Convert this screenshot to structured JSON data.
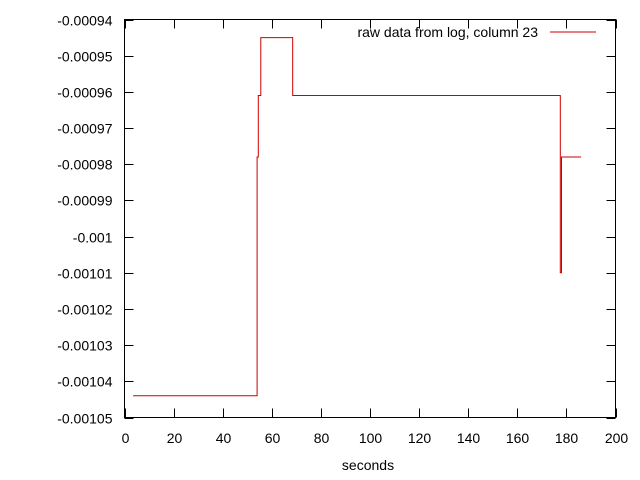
{
  "chart_data": {
    "type": "line",
    "title": "",
    "xlabel": "seconds",
    "ylabel": "",
    "xlim": [
      0,
      200
    ],
    "ylim": [
      -0.00105,
      -0.00094
    ],
    "x_ticks": [
      "0",
      "20",
      "40",
      "60",
      "80",
      "100",
      "120",
      "140",
      "160",
      "180",
      "200"
    ],
    "y_ticks": [
      "-0.00094",
      "-0.00095",
      "-0.00096",
      "-0.00097",
      "-0.00098",
      "-0.00099",
      "-0.001",
      "-0.00101",
      "-0.00102",
      "-0.00103",
      "-0.00104",
      "-0.00105"
    ],
    "grid": false,
    "legend_position": "top-right",
    "series": [
      {
        "name": "raw data from log, column 23",
        "color": "#cc0000",
        "step": true,
        "x": [
          3.5,
          54,
          54.5,
          55.5,
          68.5,
          177.5,
          178,
          186
        ],
        "y": [
          -0.001044,
          -0.000978,
          -0.000961,
          -0.000945,
          -0.000961,
          -0.00101,
          -0.000978,
          -0.000978
        ]
      }
    ]
  }
}
